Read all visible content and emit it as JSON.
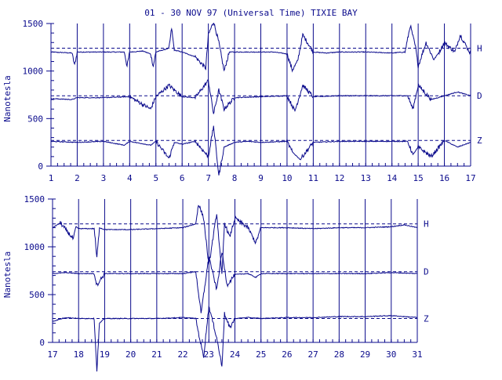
{
  "title": "01 - 30 NOV 97 (Universal Time) TIXIE BAY",
  "colors": {
    "ink": "#0a0a8c",
    "background": "#ffffff"
  },
  "chart_data": [
    {
      "type": "line",
      "xlabel": "",
      "ylabel": "Nanotesla",
      "xlim": [
        1,
        17
      ],
      "ylim": [
        0,
        1500
      ],
      "x_ticks": [
        "1",
        "2",
        "3",
        "4",
        "5",
        "6",
        "7",
        "8",
        "9",
        "10",
        "11",
        "12",
        "13",
        "14",
        "15",
        "16",
        "17"
      ],
      "y_ticks": [
        "0",
        "500",
        "1000",
        "1500"
      ],
      "grid": "vertical-day-lines",
      "legend": "right-side-labels",
      "series": [
        {
          "name": "H",
          "baseline": 1240,
          "x": [
            1.0,
            1.8,
            1.9,
            2.0,
            3.0,
            3.8,
            3.9,
            4.0,
            4.5,
            4.8,
            4.9,
            5.0,
            5.5,
            5.6,
            5.7,
            6.0,
            6.5,
            6.9,
            7.0,
            7.2,
            7.4,
            7.6,
            7.8,
            8.0,
            8.5,
            9.0,
            9.5,
            10.0,
            10.2,
            10.4,
            10.6,
            11.0,
            11.5,
            12.0,
            12.5,
            13.0,
            14.0,
            14.5,
            14.7,
            14.9,
            15.0,
            15.3,
            15.6,
            15.8,
            16.0,
            16.4,
            16.6,
            17.0
          ],
          "values": [
            1200,
            1190,
            1060,
            1200,
            1200,
            1200,
            1050,
            1200,
            1210,
            1180,
            1050,
            1200,
            1240,
            1450,
            1220,
            1200,
            1150,
            1030,
            1380,
            1520,
            1300,
            1000,
            1200,
            1200,
            1200,
            1200,
            1200,
            1180,
            1010,
            1100,
            1380,
            1200,
            1190,
            1200,
            1200,
            1200,
            1190,
            1200,
            1480,
            1250,
            1050,
            1300,
            1120,
            1200,
            1300,
            1200,
            1380,
            1180
          ]
        },
        {
          "name": "D",
          "baseline": 740,
          "x": [
            1.0,
            1.8,
            2.0,
            3.0,
            4.0,
            4.8,
            5.0,
            5.5,
            6.0,
            6.5,
            7.0,
            7.2,
            7.4,
            7.6,
            8.0,
            9.0,
            10.0,
            10.3,
            10.6,
            11.0,
            12.0,
            13.0,
            14.0,
            14.6,
            14.8,
            15.0,
            15.5,
            16.0,
            16.5,
            17.0
          ],
          "values": [
            710,
            700,
            720,
            720,
            730,
            600,
            730,
            850,
            730,
            720,
            900,
            550,
            800,
            600,
            720,
            730,
            740,
            580,
            850,
            730,
            740,
            740,
            740,
            740,
            600,
            850,
            700,
            740,
            780,
            740
          ]
        },
        {
          "name": "Z",
          "baseline": 270,
          "x": [
            1.0,
            2.0,
            3.0,
            3.8,
            4.0,
            4.8,
            5.0,
            5.5,
            5.7,
            6.0,
            6.5,
            7.0,
            7.2,
            7.4,
            7.6,
            8.0,
            8.5,
            9.0,
            10.0,
            10.2,
            10.5,
            11.0,
            12.0,
            13.0,
            14.0,
            14.6,
            14.8,
            15.0,
            15.5,
            16.0,
            16.5,
            17.0
          ],
          "values": [
            260,
            250,
            260,
            220,
            260,
            220,
            260,
            80,
            250,
            230,
            260,
            100,
            420,
            -100,
            200,
            250,
            260,
            250,
            260,
            150,
            70,
            250,
            260,
            260,
            260,
            260,
            120,
            200,
            100,
            270,
            200,
            250
          ]
        }
      ]
    },
    {
      "type": "line",
      "xlabel": "",
      "ylabel": "Nanotesla",
      "xlim": [
        17,
        31
      ],
      "ylim": [
        0,
        1500
      ],
      "x_ticks": [
        "17",
        "18",
        "19",
        "20",
        "21",
        "22",
        "23",
        "24",
        "25",
        "26",
        "27",
        "28",
        "29",
        "30",
        "31"
      ],
      "y_ticks": [
        "0",
        "500",
        "1000",
        "1500"
      ],
      "grid": "vertical-day-lines",
      "legend": "right-side-labels",
      "series": [
        {
          "name": "H",
          "baseline": 1240,
          "x": [
            17.0,
            17.3,
            17.8,
            17.9,
            18.0,
            18.6,
            18.7,
            18.8,
            19.0,
            20.0,
            21.0,
            22.0,
            22.5,
            22.6,
            22.8,
            23.0,
            23.3,
            23.5,
            23.6,
            23.8,
            24.0,
            24.5,
            24.8,
            25.0,
            26.0,
            27.0,
            28.0,
            29.0,
            30.0,
            30.5,
            31.0
          ],
          "values": [
            1200,
            1250,
            1080,
            1210,
            1190,
            1190,
            880,
            1200,
            1180,
            1180,
            1190,
            1200,
            1240,
            1450,
            1300,
            800,
            1350,
            700,
            1250,
            1100,
            1300,
            1200,
            1040,
            1200,
            1200,
            1190,
            1200,
            1200,
            1210,
            1230,
            1200
          ]
        },
        {
          "name": "D",
          "baseline": 740,
          "x": [
            17.0,
            17.5,
            18.0,
            18.6,
            18.7,
            19.0,
            20.0,
            21.0,
            22.0,
            22.5,
            22.7,
            23.0,
            23.3,
            23.5,
            23.7,
            24.0,
            24.5,
            24.8,
            25.0,
            26.0,
            27.0,
            28.0,
            29.0,
            30.0,
            31.0
          ],
          "values": [
            720,
            730,
            720,
            720,
            600,
            720,
            720,
            720,
            720,
            740,
            300,
            900,
            550,
            950,
            600,
            710,
            720,
            680,
            720,
            720,
            720,
            720,
            720,
            730,
            720
          ]
        },
        {
          "name": "Z",
          "baseline": 250,
          "x": [
            17.0,
            17.5,
            18.0,
            18.6,
            18.7,
            18.8,
            19.0,
            20.0,
            21.0,
            22.0,
            22.5,
            22.6,
            22.8,
            23.0,
            23.3,
            23.5,
            23.6,
            23.8,
            24.0,
            24.5,
            25.0,
            26.0,
            27.0,
            28.0,
            29.0,
            30.0,
            31.0
          ],
          "values": [
            220,
            260,
            250,
            250,
            -300,
            200,
            250,
            250,
            250,
            260,
            250,
            100,
            -150,
            380,
            50,
            -250,
            300,
            150,
            250,
            260,
            250,
            260,
            260,
            270,
            270,
            280,
            260
          ]
        }
      ]
    }
  ]
}
